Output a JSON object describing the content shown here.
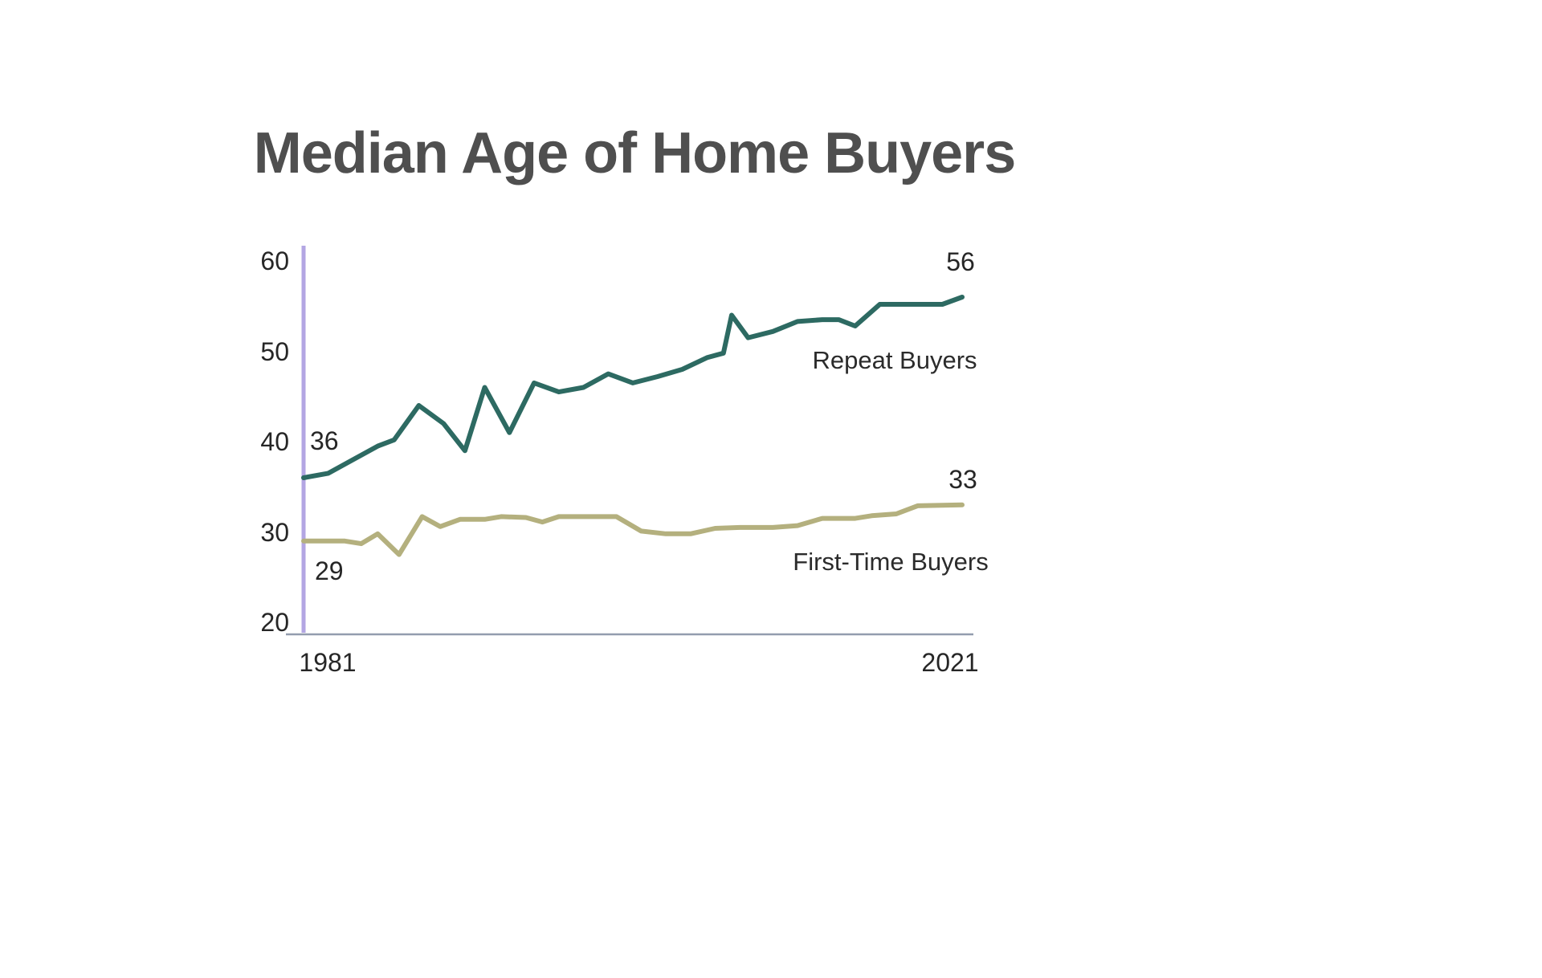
{
  "title": "Median Age of Home Buyers",
  "chart_data": {
    "type": "line",
    "title": "Median Age of Home Buyers",
    "xlabel": "",
    "ylabel": "",
    "x_range": [
      1981,
      2021
    ],
    "y_range": [
      20,
      60
    ],
    "yticks": [
      "60",
      "50",
      "40",
      "30",
      "20"
    ],
    "xticks": [
      "1981",
      "2021"
    ],
    "grid": false,
    "legend_position": "inline-labels",
    "y_axis_color": "#b3a6e3",
    "x_axis_color": "#939cae",
    "series": [
      {
        "name": "Repeat Buyers",
        "color": "#2d6a62",
        "start_label": "36",
        "end_label": "56",
        "points": [
          [
            1981,
            36
          ],
          [
            1982.5,
            36.5
          ],
          [
            1984,
            38
          ],
          [
            1985.5,
            39.5
          ],
          [
            1986.5,
            40.2
          ],
          [
            1988,
            44
          ],
          [
            1989.5,
            42
          ],
          [
            1990.8,
            39
          ],
          [
            1992,
            46
          ],
          [
            1993.5,
            41
          ],
          [
            1995,
            46.5
          ],
          [
            1996.5,
            45.5
          ],
          [
            1998,
            46
          ],
          [
            1999.5,
            47.5
          ],
          [
            2001,
            46.5
          ],
          [
            2002.5,
            47.2
          ],
          [
            2004,
            48
          ],
          [
            2005.5,
            49.3
          ],
          [
            2006.5,
            49.8
          ],
          [
            2007,
            54
          ],
          [
            2008,
            51.5
          ],
          [
            2009.5,
            52.2
          ],
          [
            2011,
            53.3
          ],
          [
            2012.5,
            53.5
          ],
          [
            2013.5,
            53.5
          ],
          [
            2014.5,
            52.8
          ],
          [
            2016,
            55.2
          ],
          [
            2017.5,
            55.2
          ],
          [
            2019.8,
            55.2
          ],
          [
            2021,
            56
          ]
        ]
      },
      {
        "name": "First-Time Buyers",
        "color": "#b4b07e",
        "start_label": "29",
        "end_label": "33",
        "points": [
          [
            1981,
            29
          ],
          [
            1983.5,
            29
          ],
          [
            1984.5,
            28.7
          ],
          [
            1985.5,
            29.8
          ],
          [
            1986.8,
            27.5
          ],
          [
            1988.2,
            31.7
          ],
          [
            1989.3,
            30.6
          ],
          [
            1990.5,
            31.4
          ],
          [
            1992,
            31.4
          ],
          [
            1993,
            31.7
          ],
          [
            1994.5,
            31.6
          ],
          [
            1995.5,
            31.1
          ],
          [
            1996.5,
            31.7
          ],
          [
            1998.5,
            31.7
          ],
          [
            2000,
            31.7
          ],
          [
            2001.5,
            30.1
          ],
          [
            2003,
            29.8
          ],
          [
            2004.5,
            29.8
          ],
          [
            2006,
            30.4
          ],
          [
            2007.5,
            30.5
          ],
          [
            2009.5,
            30.5
          ],
          [
            2011,
            30.7
          ],
          [
            2012.5,
            31.5
          ],
          [
            2014.5,
            31.5
          ],
          [
            2015.5,
            31.8
          ],
          [
            2017,
            32
          ],
          [
            2018.3,
            32.9
          ],
          [
            2021,
            33
          ]
        ]
      }
    ]
  }
}
